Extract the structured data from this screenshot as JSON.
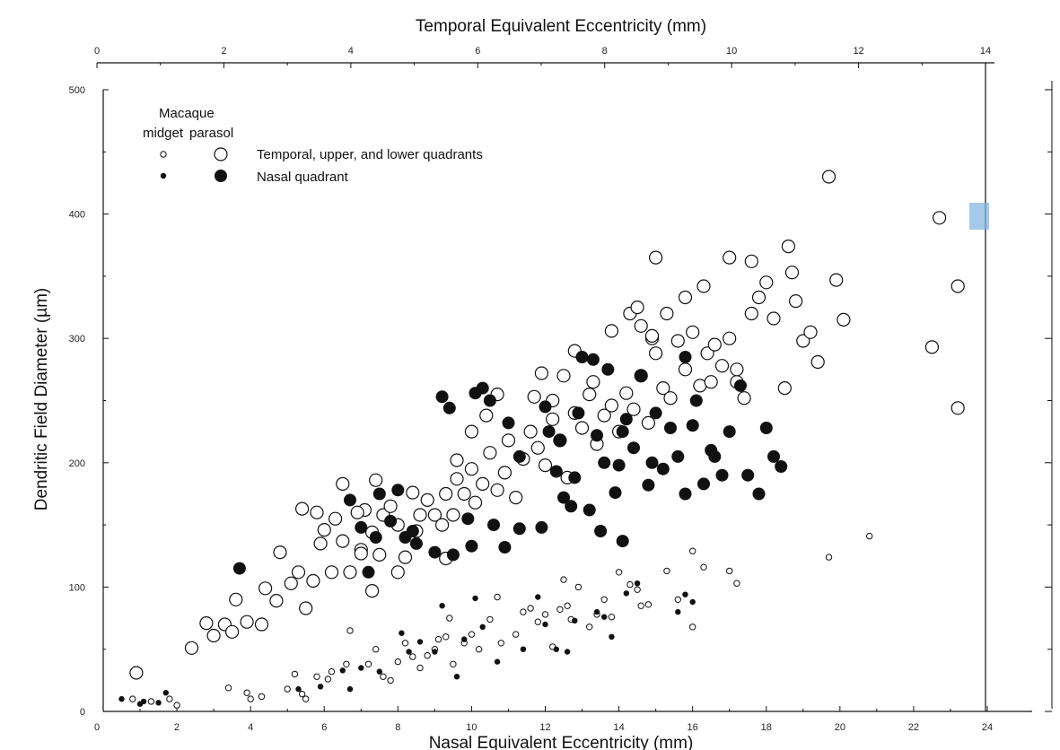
{
  "chart_data": {
    "type": "scatter",
    "xlabel": "Nasal Equivalent Eccentricity (mm)",
    "x2label": "Temporal Equivalent Eccentricity (mm)",
    "ylabel": "Dendritic Field Diameter (µm)",
    "xlim": [
      0,
      24
    ],
    "x2lim": [
      0,
      14
    ],
    "ylim": [
      0,
      500
    ],
    "x_ticks": [
      "0",
      "2",
      "4",
      "6",
      "8",
      "10",
      "12",
      "14",
      "16",
      "18",
      "20",
      "22",
      "24"
    ],
    "x2_ticks": [
      "0",
      "2",
      "4",
      "6",
      "8",
      "10",
      "12",
      "14"
    ],
    "y_ticks": [
      "0",
      "100",
      "200",
      "300",
      "400",
      "500"
    ],
    "grid": false,
    "legend": {
      "title": "Macaque",
      "col1": "midget",
      "col2": "parasol",
      "row1": "Temporal, upper, and lower quadrants",
      "row2": "Nasal quadrant"
    },
    "series": [
      {
        "name": "Temporal, upper, and lower quadrants",
        "marker": "open-small",
        "points": [
          [
            0.8,
            10
          ],
          [
            1.3,
            8
          ],
          [
            1.8,
            10
          ],
          [
            2.0,
            5
          ],
          [
            3.4,
            19
          ],
          [
            3.9,
            15
          ],
          [
            4.0,
            10
          ],
          [
            4.3,
            12
          ],
          [
            5.0,
            18
          ],
          [
            5.2,
            30
          ],
          [
            5.4,
            14
          ],
          [
            5.5,
            10
          ],
          [
            5.8,
            28
          ],
          [
            6.1,
            26
          ],
          [
            6.2,
            32
          ],
          [
            6.6,
            38
          ],
          [
            6.7,
            65
          ],
          [
            7.2,
            38
          ],
          [
            7.4,
            50
          ],
          [
            7.6,
            28
          ],
          [
            7.8,
            25
          ],
          [
            8.0,
            40
          ],
          [
            8.2,
            55
          ],
          [
            8.4,
            44
          ],
          [
            8.6,
            35
          ],
          [
            8.8,
            45
          ],
          [
            9.0,
            50
          ],
          [
            9.1,
            58
          ],
          [
            9.3,
            60
          ],
          [
            9.4,
            75
          ],
          [
            9.5,
            38
          ],
          [
            9.8,
            55
          ],
          [
            10.0,
            62
          ],
          [
            10.2,
            50
          ],
          [
            10.5,
            74
          ],
          [
            10.7,
            92
          ],
          [
            10.8,
            55
          ],
          [
            11.2,
            62
          ],
          [
            11.4,
            80
          ],
          [
            11.6,
            83
          ],
          [
            11.8,
            72
          ],
          [
            12.0,
            78
          ],
          [
            12.2,
            52
          ],
          [
            12.4,
            82
          ],
          [
            12.5,
            106
          ],
          [
            12.6,
            85
          ],
          [
            12.7,
            74
          ],
          [
            12.9,
            100
          ],
          [
            13.2,
            68
          ],
          [
            13.4,
            78
          ],
          [
            13.6,
            90
          ],
          [
            13.8,
            76
          ],
          [
            14.0,
            112
          ],
          [
            14.3,
            102
          ],
          [
            14.5,
            98
          ],
          [
            14.6,
            85
          ],
          [
            14.8,
            86
          ],
          [
            15.3,
            113
          ],
          [
            15.6,
            90
          ],
          [
            16.0,
            68
          ],
          [
            16.0,
            129
          ],
          [
            16.3,
            116
          ],
          [
            17.0,
            113
          ],
          [
            17.2,
            103
          ],
          [
            19.7,
            124
          ],
          [
            20.8,
            141
          ]
        ]
      },
      {
        "name": "Nasal quadrant",
        "marker": "filled-small",
        "points": [
          [
            0.5,
            10
          ],
          [
            1.0,
            6
          ],
          [
            1.1,
            8
          ],
          [
            1.5,
            7
          ],
          [
            1.7,
            15
          ],
          [
            5.3,
            18
          ],
          [
            5.9,
            20
          ],
          [
            6.5,
            33
          ],
          [
            6.7,
            18
          ],
          [
            7.0,
            35
          ],
          [
            7.5,
            32
          ],
          [
            8.1,
            63
          ],
          [
            8.3,
            48
          ],
          [
            8.6,
            56
          ],
          [
            9.0,
            48
          ],
          [
            9.2,
            85
          ],
          [
            9.6,
            28
          ],
          [
            9.8,
            58
          ],
          [
            10.1,
            91
          ],
          [
            10.3,
            68
          ],
          [
            10.7,
            40
          ],
          [
            11.4,
            50
          ],
          [
            11.8,
            92
          ],
          [
            12.0,
            70
          ],
          [
            12.3,
            50
          ],
          [
            12.6,
            48
          ],
          [
            12.8,
            73
          ],
          [
            13.4,
            80
          ],
          [
            13.6,
            76
          ],
          [
            13.8,
            60
          ],
          [
            14.2,
            95
          ],
          [
            14.5,
            103
          ],
          [
            15.6,
            80
          ],
          [
            15.8,
            94
          ],
          [
            16.0,
            88
          ]
        ]
      },
      {
        "name": "Temporal, upper, and lower quadrants",
        "marker": "open-large",
        "points": [
          [
            0.9,
            31
          ],
          [
            2.4,
            51
          ],
          [
            2.8,
            71
          ],
          [
            3.0,
            61
          ],
          [
            3.3,
            70
          ],
          [
            3.5,
            64
          ],
          [
            3.6,
            90
          ],
          [
            3.9,
            72
          ],
          [
            4.3,
            70
          ],
          [
            4.4,
            99
          ],
          [
            4.7,
            89
          ],
          [
            4.8,
            128
          ],
          [
            5.1,
            103
          ],
          [
            5.3,
            112
          ],
          [
            5.5,
            83
          ],
          [
            5.7,
            105
          ],
          [
            5.9,
            135
          ],
          [
            6.0,
            146
          ],
          [
            6.2,
            112
          ],
          [
            6.3,
            155
          ],
          [
            6.5,
            137
          ],
          [
            6.7,
            112
          ],
          [
            7.0,
            130
          ],
          [
            7.1,
            162
          ],
          [
            7.3,
            144
          ],
          [
            7.5,
            126
          ],
          [
            7.6,
            158
          ],
          [
            7.8,
            165
          ],
          [
            8.0,
            150
          ],
          [
            8.2,
            124
          ],
          [
            8.4,
            176
          ],
          [
            8.5,
            145
          ],
          [
            8.6,
            158
          ],
          [
            8.8,
            170
          ],
          [
            9.0,
            158
          ],
          [
            9.2,
            150
          ],
          [
            9.3,
            175
          ],
          [
            9.5,
            158
          ],
          [
            9.6,
            187
          ],
          [
            9.8,
            175
          ],
          [
            10.0,
            195
          ],
          [
            10.1,
            168
          ],
          [
            10.3,
            183
          ],
          [
            10.5,
            208
          ],
          [
            10.7,
            178
          ],
          [
            10.9,
            192
          ],
          [
            11.0,
            218
          ],
          [
            11.2,
            172
          ],
          [
            11.4,
            203
          ],
          [
            11.6,
            225
          ],
          [
            11.8,
            212
          ],
          [
            12.0,
            198
          ],
          [
            12.2,
            235
          ],
          [
            12.4,
            218
          ],
          [
            12.6,
            188
          ],
          [
            12.8,
            240
          ],
          [
            13.0,
            228
          ],
          [
            13.2,
            255
          ],
          [
            13.4,
            215
          ],
          [
            13.6,
            238
          ],
          [
            13.8,
            246
          ],
          [
            14.0,
            225
          ],
          [
            14.2,
            256
          ],
          [
            14.4,
            243
          ],
          [
            14.6,
            270
          ],
          [
            14.8,
            232
          ],
          [
            15.0,
            288
          ],
          [
            15.2,
            260
          ],
          [
            15.4,
            252
          ],
          [
            15.6,
            298
          ],
          [
            15.8,
            275
          ],
          [
            16.0,
            305
          ],
          [
            16.2,
            262
          ],
          [
            16.4,
            288
          ],
          [
            16.6,
            295
          ],
          [
            16.8,
            278
          ],
          [
            17.0,
            300
          ],
          [
            17.2,
            265
          ],
          [
            17.4,
            252
          ],
          [
            17.6,
            320
          ],
          [
            17.8,
            333
          ],
          [
            18.0,
            345
          ],
          [
            18.2,
            316
          ],
          [
            18.5,
            260
          ],
          [
            18.8,
            330
          ],
          [
            19.0,
            298
          ],
          [
            19.2,
            305
          ],
          [
            19.4,
            281
          ],
          [
            16.5,
            265
          ],
          [
            17.2,
            275
          ],
          [
            15.0,
            365
          ],
          [
            17.0,
            365
          ],
          [
            17.6,
            362
          ],
          [
            18.6,
            374
          ],
          [
            18.7,
            353
          ],
          [
            19.9,
            347
          ],
          [
            20.1,
            315
          ],
          [
            19.7,
            430
          ],
          [
            14.3,
            320
          ],
          [
            14.6,
            310
          ],
          [
            14.9,
            300
          ],
          [
            13.8,
            306
          ],
          [
            15.8,
            333
          ],
          [
            16.3,
            342
          ],
          [
            5.4,
            163
          ],
          [
            5.8,
            160
          ],
          [
            6.5,
            183
          ],
          [
            6.9,
            160
          ],
          [
            7.4,
            186
          ],
          [
            7.0,
            127
          ],
          [
            7.3,
            97
          ],
          [
            8.0,
            112
          ],
          [
            9.3,
            123
          ],
          [
            9.6,
            202
          ],
          [
            10.0,
            225
          ],
          [
            10.4,
            238
          ],
          [
            10.7,
            255
          ],
          [
            11.7,
            253
          ],
          [
            11.9,
            272
          ],
          [
            12.2,
            250
          ],
          [
            12.5,
            270
          ],
          [
            12.8,
            290
          ],
          [
            13.3,
            265
          ],
          [
            14.5,
            325
          ],
          [
            14.9,
            302
          ],
          [
            15.3,
            320
          ],
          [
            22.5,
            293
          ],
          [
            22.7,
            397
          ],
          [
            23.2,
            342
          ],
          [
            23.2,
            244
          ]
        ]
      },
      {
        "name": "Nasal quadrant",
        "marker": "filled-large",
        "points": [
          [
            3.7,
            115
          ],
          [
            6.7,
            170
          ],
          [
            7.0,
            148
          ],
          [
            7.2,
            112
          ],
          [
            7.4,
            140
          ],
          [
            7.5,
            175
          ],
          [
            7.8,
            153
          ],
          [
            8.0,
            178
          ],
          [
            8.2,
            140
          ],
          [
            8.4,
            145
          ],
          [
            8.5,
            135
          ],
          [
            9.0,
            128
          ],
          [
            9.2,
            253
          ],
          [
            9.5,
            126
          ],
          [
            9.9,
            155
          ],
          [
            10.0,
            133
          ],
          [
            10.3,
            260
          ],
          [
            10.5,
            250
          ],
          [
            10.6,
            150
          ],
          [
            10.9,
            132
          ],
          [
            11.3,
            205
          ],
          [
            11.9,
            148
          ],
          [
            12.0,
            245
          ],
          [
            12.3,
            193
          ],
          [
            12.4,
            218
          ],
          [
            12.5,
            172
          ],
          [
            12.8,
            188
          ],
          [
            12.9,
            240
          ],
          [
            13.0,
            285
          ],
          [
            13.2,
            162
          ],
          [
            13.4,
            222
          ],
          [
            13.6,
            200
          ],
          [
            13.7,
            275
          ],
          [
            13.9,
            176
          ],
          [
            14.0,
            198
          ],
          [
            14.2,
            235
          ],
          [
            14.4,
            212
          ],
          [
            14.6,
            270
          ],
          [
            14.8,
            182
          ],
          [
            15.0,
            240
          ],
          [
            15.2,
            195
          ],
          [
            15.4,
            228
          ],
          [
            15.6,
            205
          ],
          [
            15.8,
            175
          ],
          [
            16.0,
            230
          ],
          [
            16.3,
            183
          ],
          [
            16.5,
            210
          ],
          [
            16.8,
            190
          ],
          [
            17.0,
            225
          ],
          [
            17.3,
            262
          ],
          [
            17.5,
            190
          ],
          [
            17.8,
            175
          ],
          [
            18.0,
            228
          ],
          [
            18.2,
            205
          ],
          [
            18.4,
            197
          ],
          [
            9.4,
            244
          ],
          [
            10.1,
            256
          ],
          [
            11.0,
            232
          ],
          [
            12.1,
            225
          ],
          [
            13.3,
            283
          ],
          [
            14.1,
            225
          ],
          [
            14.9,
            200
          ],
          [
            15.8,
            285
          ],
          [
            16.1,
            250
          ],
          [
            16.6,
            205
          ],
          [
            12.7,
            165
          ],
          [
            13.5,
            145
          ],
          [
            14.1,
            137
          ],
          [
            11.3,
            147
          ]
        ]
      }
    ]
  }
}
